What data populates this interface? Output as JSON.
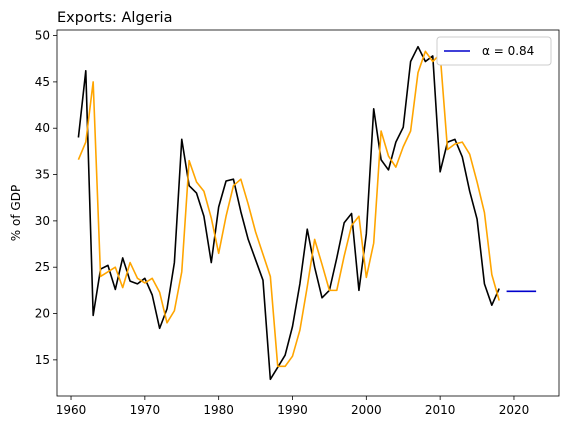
{
  "chart_data": {
    "type": "line",
    "title": "Exports: Algeria",
    "xlabel": "",
    "ylabel": "% of GDP",
    "xlim": [
      1958.1,
      2026.1
    ],
    "ylim": [
      11.1,
      50.6
    ],
    "xticks": [
      1960,
      1970,
      1980,
      1990,
      2000,
      2010,
      2020
    ],
    "yticks": [
      15,
      20,
      25,
      30,
      35,
      40,
      45,
      50
    ],
    "grid": false,
    "legend_position": "top-right",
    "series": [
      {
        "name": "",
        "color": "#000000",
        "x": [
          1961,
          1962,
          1963,
          1964,
          1965,
          1966,
          1967,
          1968,
          1969,
          1970,
          1971,
          1972,
          1973,
          1974,
          1975,
          1976,
          1977,
          1978,
          1979,
          1980,
          1981,
          1982,
          1983,
          1984,
          1985,
          1986,
          1987,
          1988,
          1989,
          1990,
          1991,
          1992,
          1993,
          1994,
          1995,
          1996,
          1997,
          1998,
          1999,
          2000,
          2001,
          2002,
          2003,
          2004,
          2005,
          2006,
          2007,
          2008,
          2009,
          2010,
          2011,
          2012,
          2013,
          2014,
          2015,
          2016,
          2017,
          2018
        ],
        "y": [
          39.0,
          46.2,
          19.8,
          24.8,
          25.2,
          22.6,
          26.0,
          23.5,
          23.2,
          23.8,
          22.0,
          18.4,
          20.5,
          25.5,
          38.8,
          33.8,
          33.0,
          30.5,
          25.5,
          31.5,
          34.3,
          34.5,
          31.0,
          28.0,
          25.8,
          23.6,
          12.9,
          14.2,
          15.5,
          18.6,
          23.2,
          29.1,
          25.0,
          21.7,
          22.5,
          26.0,
          29.8,
          30.8,
          22.5,
          28.6,
          42.1,
          36.6,
          35.5,
          38.5,
          40.1,
          47.2,
          48.8,
          47.2,
          47.8,
          35.3,
          38.5,
          38.8,
          36.9,
          33.2,
          30.2,
          23.2,
          20.9,
          22.7
        ]
      },
      {
        "name": "",
        "color": "#ffa500",
        "x": [
          1961,
          1962,
          1963,
          1964,
          1965,
          1966,
          1967,
          1968,
          1969,
          1970,
          1971,
          1972,
          1973,
          1974,
          1975,
          1976,
          1977,
          1978,
          1979,
          1980,
          1981,
          1982,
          1983,
          1984,
          1985,
          1986,
          1987,
          1988,
          1989,
          1990,
          1991,
          1992,
          1993,
          1994,
          1995,
          1996,
          1997,
          1998,
          1999,
          2000,
          2001,
          2002,
          2003,
          2004,
          2005,
          2006,
          2007,
          2008,
          2009,
          2010,
          2011,
          2012,
          2013,
          2014,
          2015,
          2016,
          2017,
          2018
        ],
        "y": [
          36.6,
          38.5,
          45.0,
          24.0,
          24.5,
          25.0,
          22.8,
          25.5,
          23.8,
          23.3,
          23.8,
          22.3,
          19.0,
          20.3,
          24.5,
          36.5,
          34.2,
          33.2,
          30.3,
          26.5,
          30.5,
          33.8,
          34.5,
          31.8,
          28.8,
          26.4,
          24.0,
          14.3,
          14.3,
          15.4,
          18.2,
          22.9,
          28.0,
          25.3,
          22.5,
          22.5,
          26.2,
          29.5,
          30.5,
          23.9,
          27.6,
          39.7,
          37.0,
          35.8,
          38.0,
          39.7,
          46.0,
          48.3,
          47.2,
          48.0,
          37.7,
          38.3,
          38.5,
          37.2,
          34.2,
          30.9,
          24.2,
          21.4
        ]
      },
      {
        "name": "α = 0.84",
        "color": "#0000cc",
        "x": [
          2019,
          2023
        ],
        "y": [
          22.4,
          22.4
        ]
      }
    ]
  }
}
